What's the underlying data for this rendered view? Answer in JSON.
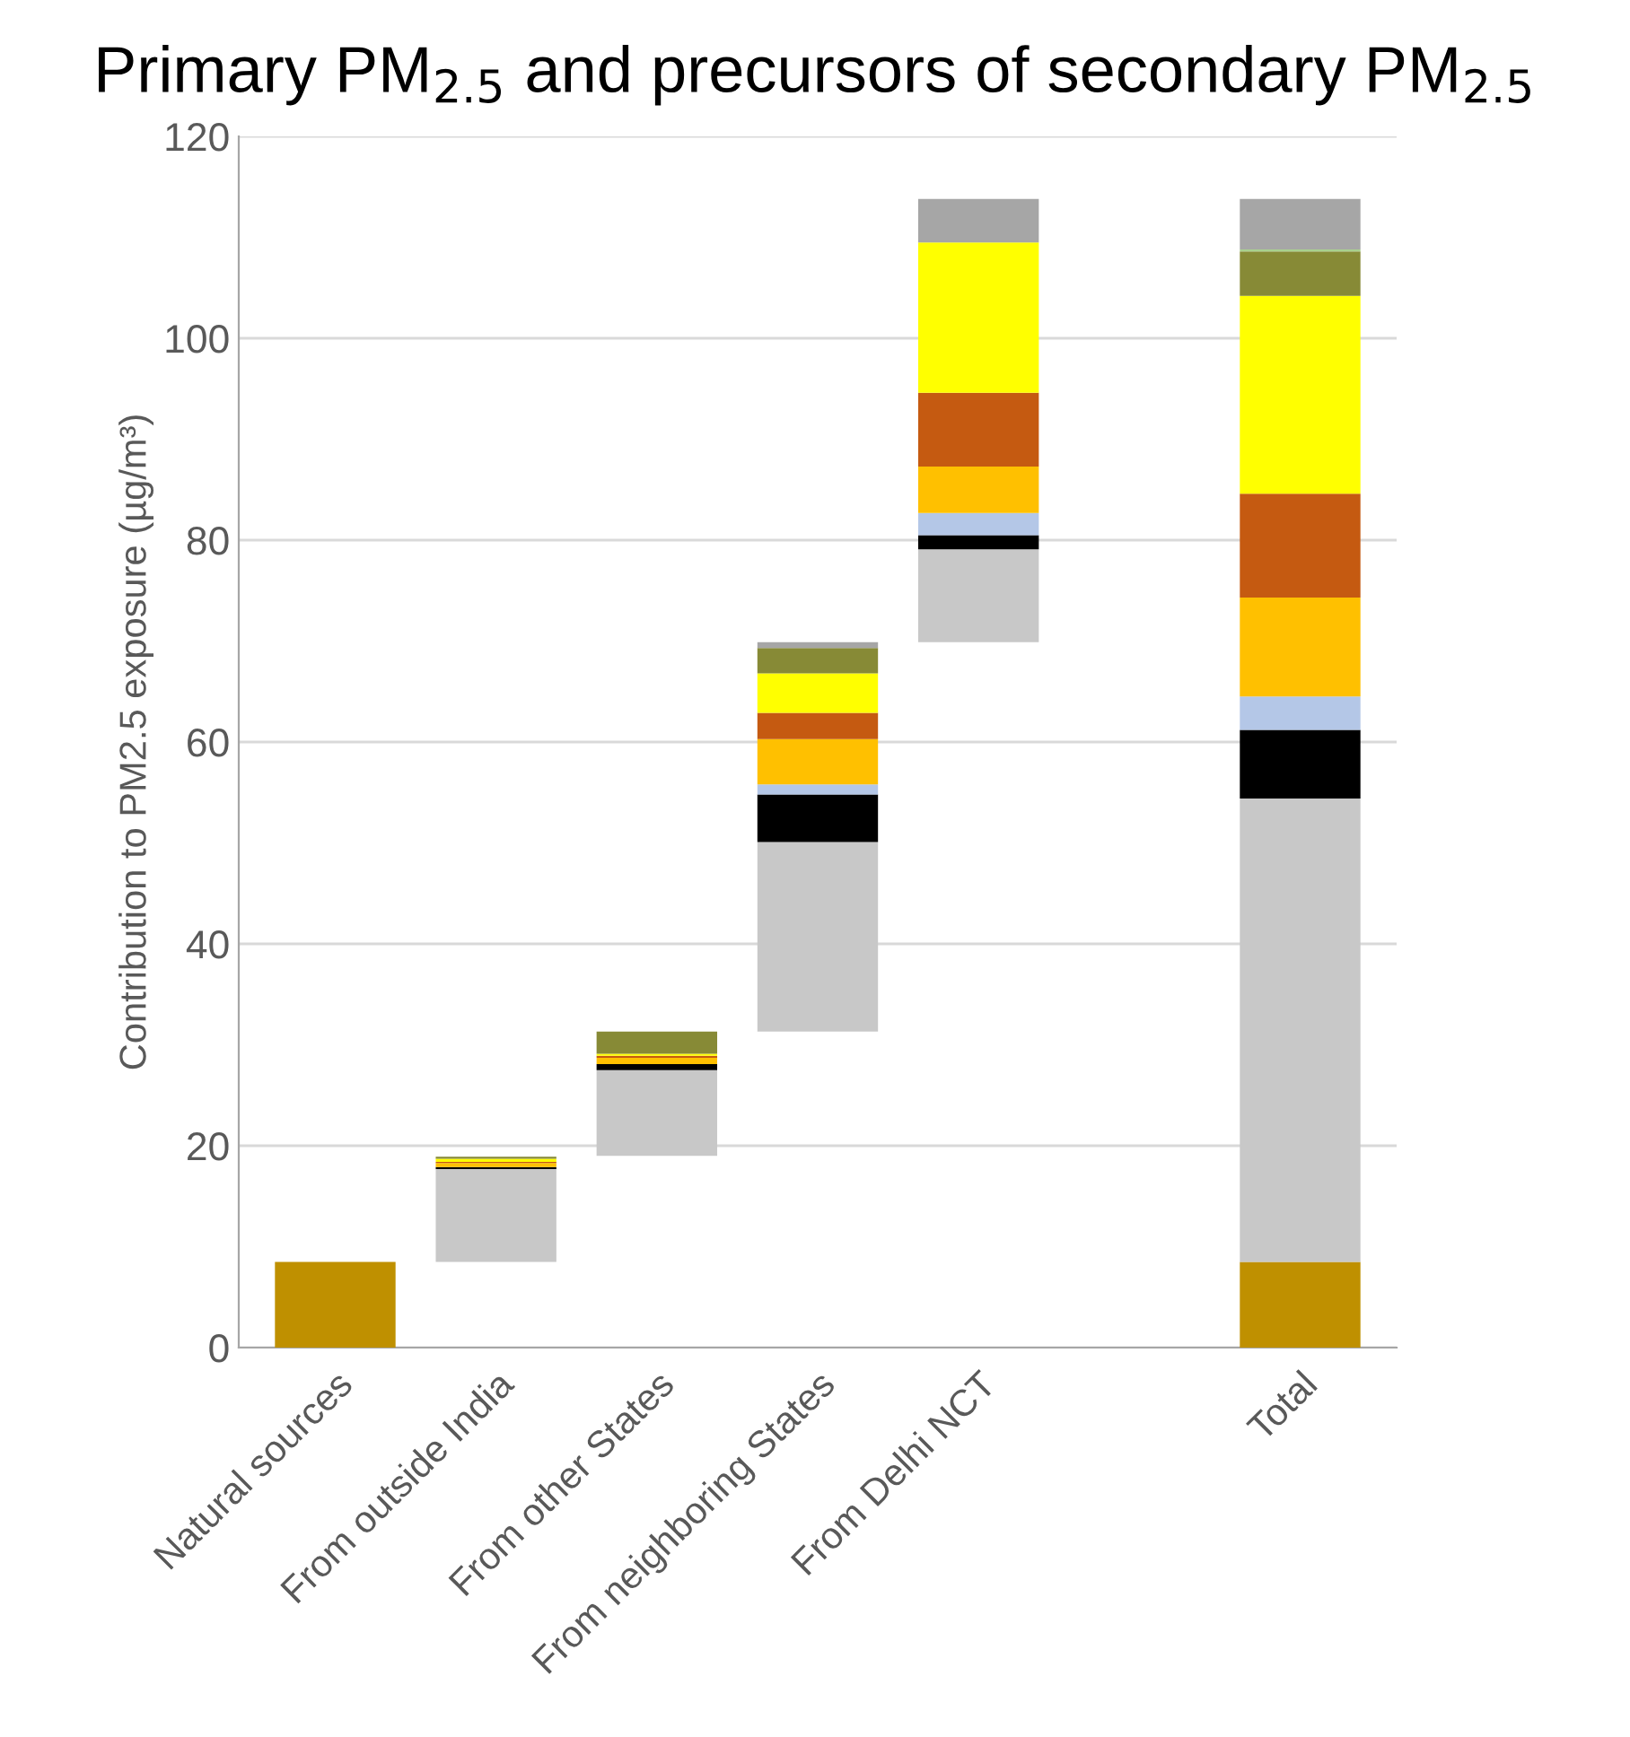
{
  "chart_data": {
    "type": "bar",
    "title": "Primary PM$_{2.5}$ and precursors of secondary PM$_{2.5}$",
    "ylabel": "Contribution to PM2.5 exposure (µg/m³)",
    "categories": [
      "Natural sources",
      "From outside India",
      "From other States",
      "From neighboring States",
      "From Delhi NCT",
      null,
      "Total"
    ],
    "series": [
      {
        "color": "#bf9000",
        "base": [
          0,
          null,
          null,
          null,
          null,
          null,
          0
        ],
        "values": [
          8.5,
          null,
          null,
          null,
          null,
          null,
          8.5
        ]
      },
      {
        "color": "#c8c8c8",
        "base": [
          null,
          8.5,
          19.0,
          31.3,
          69.9,
          null,
          8.5
        ],
        "values": [
          null,
          9.2,
          8.5,
          18.8,
          9.2,
          null,
          45.9
        ]
      },
      {
        "color": "#000000",
        "base": [
          null,
          17.7,
          27.5,
          50.1,
          79.1,
          null,
          54.4
        ],
        "values": [
          null,
          0.2,
          0.6,
          4.7,
          1.4,
          null,
          6.8
        ]
      },
      {
        "color": "#b4c7e7",
        "base": [
          null,
          null,
          null,
          54.8,
          80.5,
          null,
          61.2
        ],
        "values": [
          null,
          null,
          null,
          1.0,
          2.2,
          null,
          3.3
        ]
      },
      {
        "color": "#ffc000",
        "base": [
          null,
          17.9,
          28.1,
          55.8,
          82.7,
          null,
          64.5
        ],
        "values": [
          null,
          0.4,
          0.6,
          4.5,
          4.6,
          null,
          9.8
        ]
      },
      {
        "color": "#c55a11",
        "base": [
          null,
          18.3,
          28.7,
          60.3,
          87.3,
          null,
          74.3
        ],
        "values": [
          null,
          0.1,
          0.2,
          2.6,
          7.3,
          null,
          10.3
        ]
      },
      {
        "color": "#ffff00",
        "base": [
          null,
          18.4,
          28.9,
          62.9,
          94.6,
          null,
          84.6
        ],
        "values": [
          null,
          0.3,
          0.2,
          3.9,
          14.9,
          null,
          19.6
        ]
      },
      {
        "color": "#878a36",
        "base": [
          null,
          18.7,
          29.1,
          66.8,
          null,
          null,
          104.2
        ],
        "values": [
          null,
          0.2,
          2.2,
          2.5,
          null,
          null,
          4.4
        ]
      },
      {
        "color": "#a9d18e",
        "base": [
          null,
          null,
          null,
          null,
          null,
          null,
          108.6
        ],
        "values": [
          null,
          null,
          null,
          null,
          null,
          null,
          0.2
        ]
      },
      {
        "color": "#a6a6a6",
        "base": [
          null,
          null,
          null,
          69.3,
          109.5,
          null,
          108.8
        ],
        "values": [
          null,
          null,
          null,
          0.6,
          4.3,
          null,
          5.0
        ]
      }
    ],
    "ylim": [
      0,
      120
    ],
    "yticks": [
      0,
      20,
      40,
      60,
      80,
      100,
      120
    ],
    "grid": "y",
    "legend": false
  }
}
